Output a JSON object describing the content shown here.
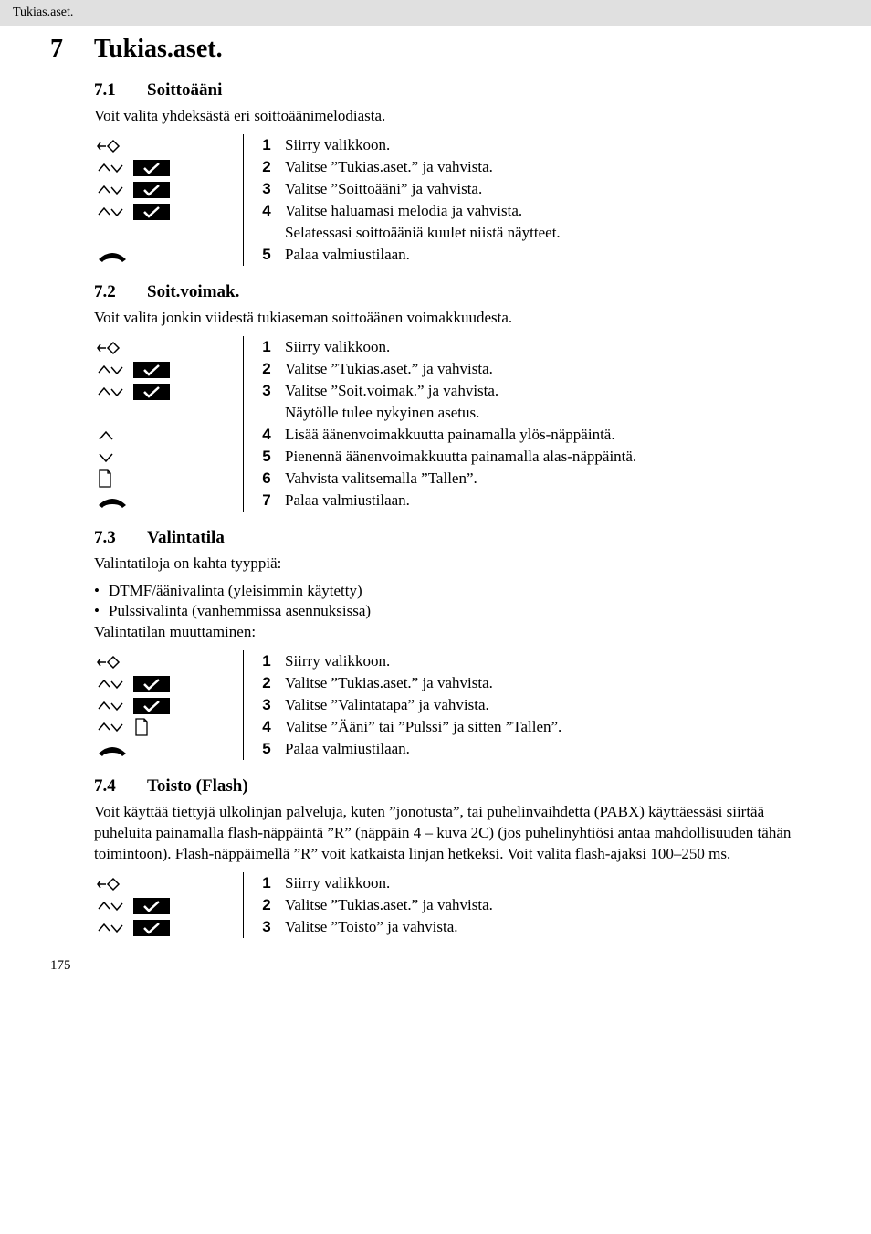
{
  "header": {
    "running_title": "Tukias.aset."
  },
  "chapter": {
    "num": "7",
    "title": "Tukias.aset."
  },
  "sections": [
    {
      "num": "7.1",
      "title": "Soittoääni",
      "intro": "Voit valita yhdeksästä eri soittoäänimelodiasta.",
      "steps": [
        {
          "n": "1",
          "icons": [
            "menu"
          ],
          "text": "Siirry valikkoon."
        },
        {
          "n": "2",
          "icons": [
            "updown",
            "ok"
          ],
          "text": "Valitse ”Tukias.aset.” ja vahvista."
        },
        {
          "n": "3",
          "icons": [
            "updown",
            "ok"
          ],
          "text": "Valitse ”Soittoääni” ja vahvista."
        },
        {
          "n": "4",
          "icons": [
            "updown",
            "ok"
          ],
          "text": "Valitse haluamasi melodia ja vahvista."
        },
        {
          "note": "Selatessasi soittoääniä kuulet niistä näytteet."
        },
        {
          "n": "5",
          "icons": [
            "hangup"
          ],
          "text": "Palaa valmiustilaan."
        }
      ]
    },
    {
      "num": "7.2",
      "title": "Soit.voimak.",
      "intro": "Voit valita jonkin viidestä tukiaseman soittoäänen voimakkuudesta.",
      "steps": [
        {
          "n": "1",
          "icons": [
            "menu"
          ],
          "text": "Siirry valikkoon."
        },
        {
          "n": "2",
          "icons": [
            "updown",
            "ok"
          ],
          "text": "Valitse ”Tukias.aset.” ja vahvista."
        },
        {
          "n": "3",
          "icons": [
            "updown",
            "ok"
          ],
          "text": "Valitse ”Soit.voimak.” ja vahvista."
        },
        {
          "note": "Näytölle tulee nykyinen asetus."
        },
        {
          "n": "4",
          "icons": [
            "up"
          ],
          "text": "Lisää äänenvoimakkuutta painamalla ylös-näppäintä."
        },
        {
          "n": "5",
          "icons": [
            "down"
          ],
          "text": "Pienennä äänenvoimakkuutta painamalla alas-näppäintä."
        },
        {
          "n": "6",
          "icons": [
            "save"
          ],
          "text": "Vahvista valitsemalla ”Tallen”."
        },
        {
          "n": "7",
          "icons": [
            "hangup"
          ],
          "text": "Palaa valmiustilaan."
        }
      ]
    },
    {
      "num": "7.3",
      "title": "Valintatila",
      "intro": "Valintatiloja on kahta tyyppiä:",
      "bullets": [
        "DTMF/äänivalinta (yleisimmin käytetty)",
        "Pulssivalinta (vanhemmissa asennuksissa)"
      ],
      "intro2": "Valintatilan muuttaminen:",
      "steps": [
        {
          "n": "1",
          "icons": [
            "menu"
          ],
          "text": "Siirry valikkoon."
        },
        {
          "n": "2",
          "icons": [
            "updown",
            "ok"
          ],
          "text": "Valitse ”Tukias.aset.” ja vahvista."
        },
        {
          "n": "3",
          "icons": [
            "updown",
            "ok"
          ],
          "text": "Valitse ”Valintatapa” ja vahvista."
        },
        {
          "n": "4",
          "icons": [
            "updown",
            "save"
          ],
          "text": "Valitse ”Ääni” tai ”Pulssi” ja sitten ”Tallen”."
        },
        {
          "n": "5",
          "icons": [
            "hangup"
          ],
          "text": "Palaa valmiustilaan."
        }
      ]
    },
    {
      "num": "7.4",
      "title": "Toisto (Flash)",
      "intro": "Voit käyttää tiettyjä ulkolinjan palveluja, kuten ”jonotusta”, tai puhelinvaihdetta (PABX) käyttäessäsi siirtää puheluita painamalla flash-näppäintä ”R” (näppäin 4 – kuva 2C) (jos puhelinyhtiösi antaa mahdollisuuden tähän toimintoon). Flash-näppäimellä ”R” voit katkaista linjan hetkeksi. Voit valita flash-ajaksi 100–250 ms.",
      "steps": [
        {
          "n": "1",
          "icons": [
            "menu"
          ],
          "text": "Siirry valikkoon."
        },
        {
          "n": "2",
          "icons": [
            "updown",
            "ok"
          ],
          "text": "Valitse ”Tukias.aset.” ja vahvista."
        },
        {
          "n": "3",
          "icons": [
            "updown",
            "ok"
          ],
          "text": "Valitse ”Toisto” ja vahvista."
        }
      ]
    }
  ],
  "page_number": "175",
  "icons_svg": {
    "menu": "<svg width='26' height='16' viewBox='0 0 26 16'><g stroke='#000' stroke-width='1.5' fill='none'><line x1='1' y1='8' x2='10' y2='8'/><polyline points='4,4 1,8 4,12'/><polygon points='12,8 18,2 24,8 18,14' /></g></svg>",
    "updown": "<svg width='30' height='16' viewBox='0 0 30 16'><g stroke='#000' stroke-width='1.5' fill='none'><polyline points='2,11 8,4 14,11'/><polyline points='16,5 22,12 28,5'/></g></svg>",
    "ok": "<svg width='40' height='18' viewBox='0 0 40 18'><rect x='0' y='0' width='40' height='18' fill='#000'/><polyline points='12,9 17,14 28,4' stroke='#fff' stroke-width='2.5' fill='none'/></svg>",
    "up": "<svg width='20' height='14' viewBox='0 0 20 14'><polyline points='3,11 10,3 17,11' stroke='#000' stroke-width='1.5' fill='none'/></svg>",
    "down": "<svg width='20' height='14' viewBox='0 0 20 14'><polyline points='3,3 10,11 17,3' stroke='#000' stroke-width='1.5' fill='none'/></svg>",
    "save": "<svg width='18' height='20' viewBox='0 0 18 20'><g stroke='#000' stroke-width='1.3' fill='none'><path d='M3 1 L12 1 L15 4 L15 19 L3 19 Z'/><polyline points='12,1 12,4 15,4'/></g></svg>",
    "hangup": "<svg width='34' height='16' viewBox='0 0 34 16'><path d='M2 12 Q17 -2 32 12 L28 15 Q25 11 17 11 Q9 11 6 15 Z' fill='#000'/></svg>"
  }
}
